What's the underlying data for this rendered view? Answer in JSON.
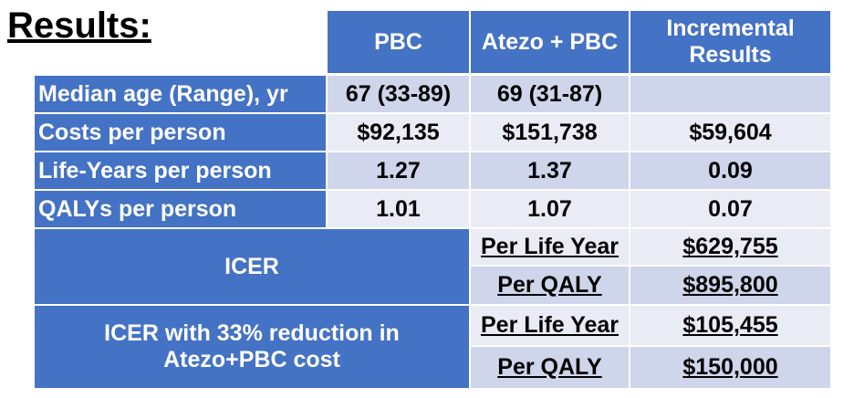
{
  "title": "Results:",
  "table": {
    "header": [
      "PBC",
      "Atezo + PBC",
      "Incremental Results"
    ],
    "rows": [
      [
        "Median age (Range), yr",
        "67 (33-89)",
        "69 (31-87)"
      ],
      [
        "Costs per person",
        "$92,135",
        "$151,738",
        "$59,604"
      ],
      [
        "Life-Years per person",
        "1.27",
        "1.37",
        "0.09"
      ],
      [
        "QALYs per person",
        "1.01",
        "1.07",
        "0.07"
      ]
    ],
    "icer": [
      {
        "label": "ICER",
        "rows": [
          [
            "Per Life Year",
            "$629,755"
          ],
          [
            "Per QALY",
            "$895,800"
          ]
        ]
      },
      {
        "label": "ICER with 33% reduction in Atezo+PBC cost",
        "rows": [
          [
            "Per Life Year",
            "$105,455"
          ],
          [
            "Per QALY",
            "$150,000"
          ]
        ]
      }
    ]
  }
}
